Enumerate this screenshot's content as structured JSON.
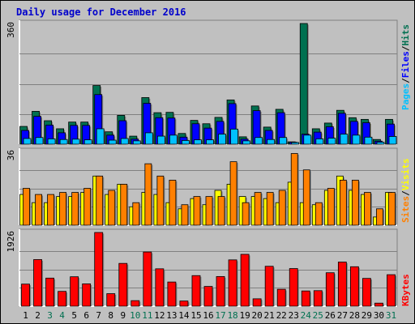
{
  "title": "Daily usage for December 2016",
  "colors": {
    "background": "#c0c0c0",
    "frame": "#ffffff",
    "title_text": "#0000cc",
    "pages": "#00c0ff",
    "files": "#0000ff",
    "hits": "#007050",
    "visits": "#ffff00",
    "sites": "#ff8000",
    "kbytes": "#ff0000",
    "weekend_day": "#007050",
    "weekday": "#000000"
  },
  "legends": {
    "top": [
      {
        "label": "Pages",
        "color": "#00c0ff"
      },
      {
        "label": "/",
        "color": "#000000"
      },
      {
        "label": "Files",
        "color": "#0000ff"
      },
      {
        "label": "/",
        "color": "#000000"
      },
      {
        "label": "Hits",
        "color": "#007050"
      }
    ],
    "middle": [
      {
        "label": "Sites",
        "color": "#ff8000"
      },
      {
        "label": "/",
        "color": "#000000"
      },
      {
        "label": "Visits",
        "color": "#ffff00"
      }
    ],
    "bottom": [
      {
        "label": "KBytes",
        "color": "#ff0000"
      }
    ]
  },
  "chart_data": [
    {
      "type": "bar",
      "name": "hits-files-pages",
      "ymax_label": "360",
      "ylim": [
        0,
        360
      ],
      "categories": [
        "1",
        "2",
        "3",
        "4",
        "5",
        "6",
        "7",
        "8",
        "9",
        "10",
        "11",
        "12",
        "13",
        "14",
        "15",
        "16",
        "17",
        "18",
        "19",
        "20",
        "21",
        "22",
        "23",
        "24",
        "25",
        "26",
        "27",
        "28",
        "29",
        "30",
        "31"
      ],
      "weekend_days": [
        3,
        4,
        10,
        11,
        17,
        18,
        24,
        25,
        31
      ],
      "series": [
        {
          "name": "Hits",
          "values": [
            53,
            98,
            70,
            46,
            66,
            66,
            175,
            37,
            86,
            24,
            139,
            94,
            95,
            32,
            71,
            61,
            80,
            132,
            22,
            114,
            51,
            104,
            7,
            360,
            46,
            63,
            101,
            79,
            74,
            14,
            74
          ]
        },
        {
          "name": "Files",
          "values": [
            41,
            83,
            57,
            34,
            56,
            56,
            148,
            27,
            70,
            15,
            122,
            79,
            78,
            21,
            61,
            48,
            68,
            121,
            15,
            100,
            41,
            94,
            6,
            30,
            36,
            52,
            92,
            68,
            64,
            9,
            60
          ]
        },
        {
          "name": "Pages",
          "values": [
            17,
            20,
            16,
            14,
            15,
            13,
            46,
            12,
            17,
            10,
            34,
            24,
            27,
            11,
            13,
            13,
            30,
            45,
            10,
            20,
            14,
            20,
            5,
            27,
            16,
            18,
            30,
            27,
            21,
            6,
            23
          ]
        }
      ]
    },
    {
      "type": "bar",
      "name": "visits-sites",
      "ymax_label": "36",
      "ylim": [
        0,
        36
      ],
      "categories": [
        "1",
        "2",
        "3",
        "4",
        "5",
        "6",
        "7",
        "8",
        "9",
        "10",
        "11",
        "12",
        "13",
        "14",
        "15",
        "16",
        "17",
        "18",
        "19",
        "20",
        "21",
        "22",
        "23",
        "24",
        "25",
        "26",
        "27",
        "28",
        "29",
        "30",
        "31"
      ],
      "series": [
        {
          "name": "Visits",
          "values": [
            15,
            11,
            11,
            14,
            14,
            16,
            24,
            15,
            20,
            9,
            16,
            15,
            11,
            8,
            13,
            10,
            17,
            20,
            14,
            14,
            13,
            11,
            21,
            11,
            10,
            17,
            24,
            17,
            15,
            4,
            16
          ]
        },
        {
          "name": "Sites",
          "values": [
            18,
            15,
            15,
            16,
            16,
            18,
            24,
            17,
            20,
            11,
            30,
            24,
            22,
            10,
            14,
            14,
            14,
            31,
            11,
            16,
            16,
            17,
            35,
            27,
            11,
            18,
            22,
            22,
            16,
            8,
            16
          ]
        }
      ]
    },
    {
      "type": "bar",
      "name": "kbytes",
      "ymax_label": "1926",
      "ylim": [
        0,
        1926
      ],
      "categories": [
        "1",
        "2",
        "3",
        "4",
        "5",
        "6",
        "7",
        "8",
        "9",
        "10",
        "11",
        "12",
        "13",
        "14",
        "15",
        "16",
        "17",
        "18",
        "19",
        "20",
        "21",
        "22",
        "23",
        "24",
        "25",
        "26",
        "27",
        "28",
        "29",
        "30",
        "31"
      ],
      "series": [
        {
          "name": "KBytes",
          "values": [
            577,
            1218,
            734,
            387,
            769,
            583,
            1926,
            327,
            1118,
            145,
            1416,
            977,
            632,
            135,
            799,
            516,
            775,
            1210,
            1355,
            193,
            1043,
            442,
            983,
            398,
            406,
            874,
            1153,
            1031,
            726,
            80,
            823
          ]
        }
      ]
    }
  ]
}
